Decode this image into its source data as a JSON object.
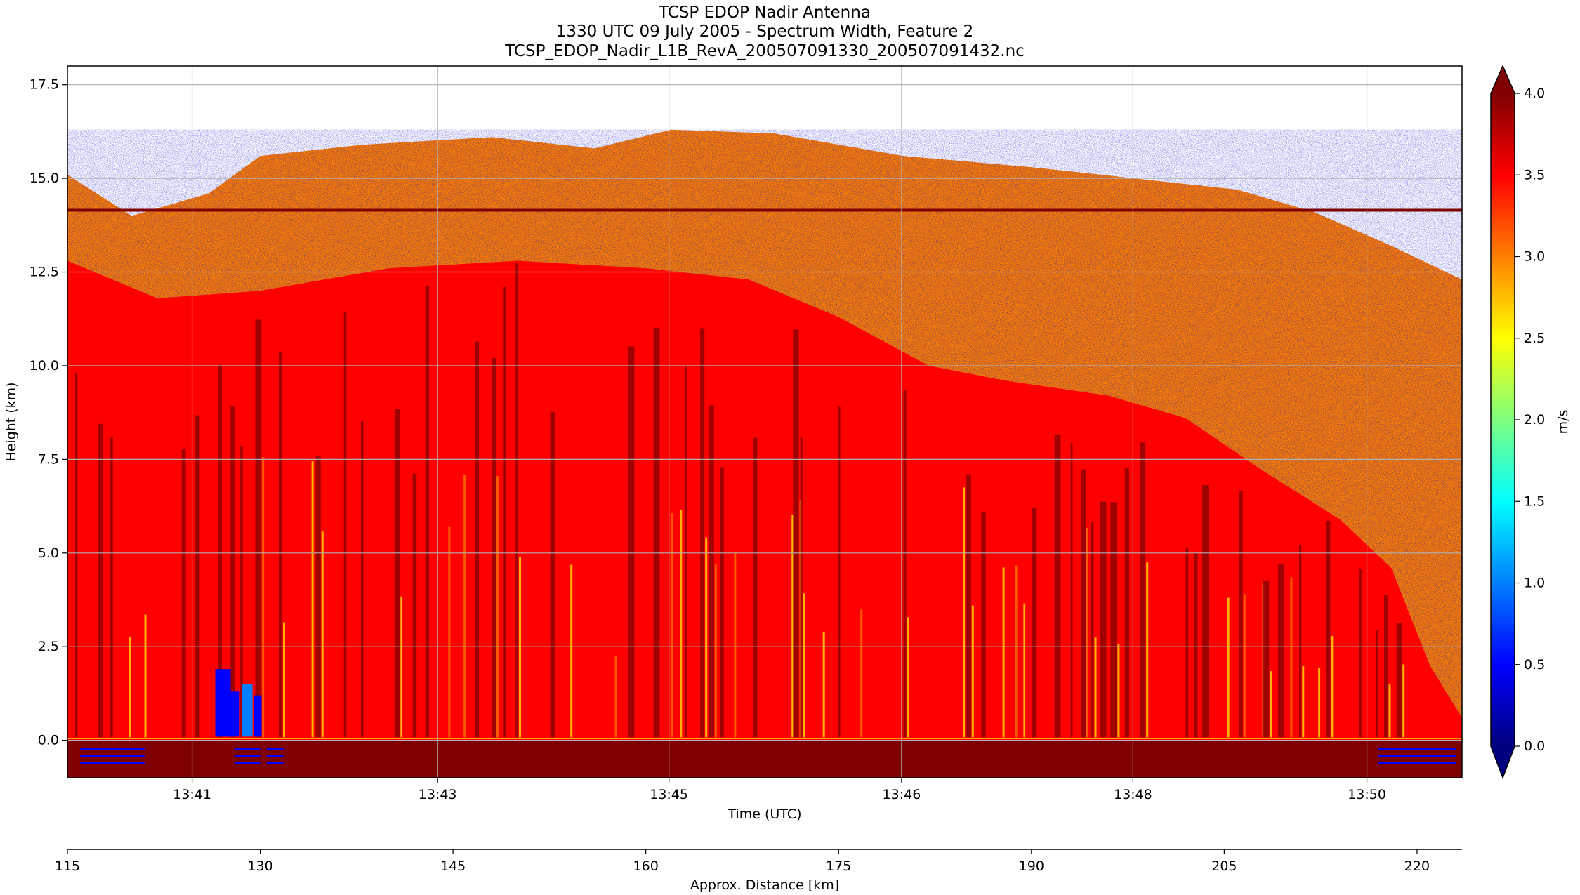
{
  "chart_data": {
    "type": "heatmap",
    "title_lines": [
      "TCSP EDOP Nadir Antenna",
      "1330 UTC 09 July 2005 - Spectrum Width, Feature 2",
      "TCSP_EDOP_Nadir_L1B_RevA_200507091330_200507091432.nc"
    ],
    "xlabel": "Time (UTC)",
    "ylabel": "Height (km)",
    "x2label": "Approx. Distance [km]",
    "colorbar_label": "m/s",
    "grid": true,
    "colormap": "jet",
    "colormap_colors": [
      "#00007f",
      "#0000ff",
      "#007fff",
      "#00ffff",
      "#7fff7f",
      "#ffff00",
      "#ff7f00",
      "#ff0000",
      "#7f0000"
    ],
    "background_color": "#ffffff",
    "xlim_distance_km": [
      115,
      223.5
    ],
    "ylim_km": [
      -1.0,
      18.0
    ],
    "clim": [
      0.0,
      4.0
    ],
    "x_ticks": [
      {
        "label": "13:41",
        "distance_km": 124.7
      },
      {
        "label": "13:43",
        "distance_km": 143.8
      },
      {
        "label": "13:45",
        "distance_km": 161.8
      },
      {
        "label": "13:46",
        "distance_km": 179.9
      },
      {
        "label": "13:48",
        "distance_km": 197.9
      },
      {
        "label": "13:50",
        "distance_km": 216.1
      }
    ],
    "y_ticks": [
      {
        "label": "0.0",
        "value": 0.0
      },
      {
        "label": "2.5",
        "value": 2.5
      },
      {
        "label": "5.0",
        "value": 5.0
      },
      {
        "label": "7.5",
        "value": 7.5
      },
      {
        "label": "10.0",
        "value": 10.0
      },
      {
        "label": "12.5",
        "value": 12.5
      },
      {
        "label": "15.0",
        "value": 15.0
      },
      {
        "label": "17.5",
        "value": 17.5
      }
    ],
    "x2_ticks": [
      {
        "label": "115",
        "value": 115
      },
      {
        "label": "130",
        "value": 130
      },
      {
        "label": "145",
        "value": 145
      },
      {
        "label": "160",
        "value": 160
      },
      {
        "label": "175",
        "value": 175
      },
      {
        "label": "190",
        "value": 190
      },
      {
        "label": "205",
        "value": 205
      },
      {
        "label": "220",
        "value": 220
      }
    ],
    "colorbar_ticks": [
      {
        "label": "0.0",
        "value": 0.0
      },
      {
        "label": "0.5",
        "value": 0.5
      },
      {
        "label": "1.0",
        "value": 1.0
      },
      {
        "label": "1.5",
        "value": 1.5
      },
      {
        "label": "2.0",
        "value": 2.0
      },
      {
        "label": "2.5",
        "value": 2.5
      },
      {
        "label": "3.0",
        "value": 3.0
      },
      {
        "label": "3.5",
        "value": 3.5
      },
      {
        "label": "4.0",
        "value": 4.0
      }
    ],
    "echo_top_km": [
      [
        115,
        15.1
      ],
      [
        120,
        14.0
      ],
      [
        126,
        14.6
      ],
      [
        130,
        15.6
      ],
      [
        138,
        15.9
      ],
      [
        148,
        16.1
      ],
      [
        156,
        15.8
      ],
      [
        162,
        16.3
      ],
      [
        170,
        16.2
      ],
      [
        180,
        15.6
      ],
      [
        190,
        15.3
      ],
      [
        198,
        15.0
      ],
      [
        206,
        14.7
      ],
      [
        212,
        14.1
      ],
      [
        218,
        13.2
      ],
      [
        223.5,
        12.3
      ]
    ],
    "rain_top_km": [
      [
        115,
        12.8
      ],
      [
        122,
        11.8
      ],
      [
        130,
        12.0
      ],
      [
        140,
        12.6
      ],
      [
        150,
        12.8
      ],
      [
        160,
        12.6
      ],
      [
        168,
        12.3
      ],
      [
        175,
        11.3
      ],
      [
        182,
        10.0
      ],
      [
        188,
        9.6
      ],
      [
        196,
        9.2
      ],
      [
        202,
        8.6
      ],
      [
        208,
        7.2
      ],
      [
        214,
        5.9
      ],
      [
        218,
        4.6
      ],
      [
        221,
        2.0
      ],
      [
        223.5,
        0.6
      ]
    ],
    "surface_return_km": 0.0,
    "bright_band_km": 14.15
  }
}
